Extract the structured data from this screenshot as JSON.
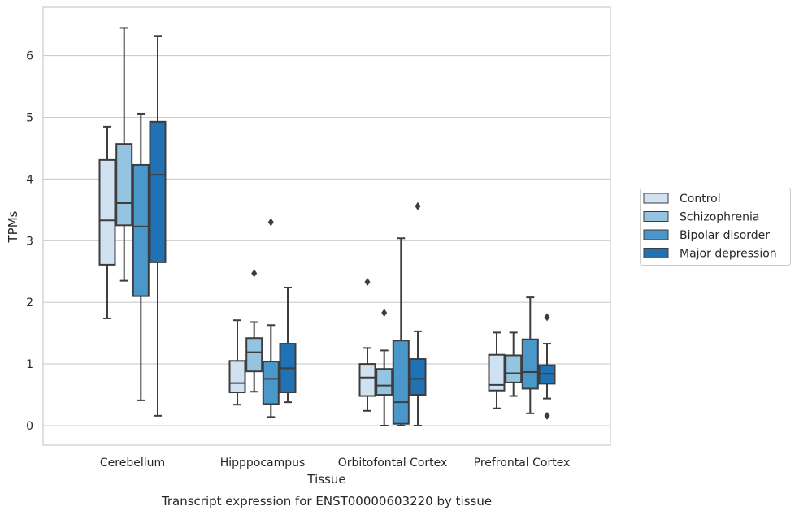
{
  "chart_data": {
    "type": "boxplot",
    "caption": "Transcript expression for ENST00000603220 by tissue",
    "xlabel": "Tissue",
    "ylabel": "TPMs",
    "ylim": [
      -0.3,
      6.8
    ],
    "yticks": [
      "0",
      "1",
      "2",
      "3",
      "4",
      "5",
      "6"
    ],
    "grid": true,
    "legend_position": "right",
    "categories": [
      "Cerebellum",
      "Hipppocampus",
      "Orbitofontal Cortex",
      "Prefrontal Cortex"
    ],
    "series": [
      {
        "name": "Control",
        "color": "#d0e1f2",
        "boxes": [
          {
            "whislo": 1.74,
            "q1": 2.61,
            "med": 3.33,
            "q3": 4.31,
            "whishi": 4.85,
            "fliers": []
          },
          {
            "whislo": 0.34,
            "q1": 0.54,
            "med": 0.69,
            "q3": 1.05,
            "whishi": 1.71,
            "fliers": []
          },
          {
            "whislo": 0.24,
            "q1": 0.48,
            "med": 0.78,
            "q3": 1.0,
            "whishi": 1.26,
            "fliers": [
              2.33
            ]
          },
          {
            "whislo": 0.28,
            "q1": 0.57,
            "med": 0.66,
            "q3": 1.15,
            "whishi": 1.51,
            "fliers": []
          }
        ]
      },
      {
        "name": "Schizophrenia",
        "color": "#94c4df",
        "boxes": [
          {
            "whislo": 2.35,
            "q1": 3.25,
            "med": 3.61,
            "q3": 4.57,
            "whishi": 6.45,
            "fliers": []
          },
          {
            "whislo": 0.55,
            "q1": 0.88,
            "med": 1.19,
            "q3": 1.42,
            "whishi": 1.68,
            "fliers": [
              2.47
            ]
          },
          {
            "whislo": 0.0,
            "q1": 0.5,
            "med": 0.65,
            "q3": 0.92,
            "whishi": 1.22,
            "fliers": [
              1.83
            ]
          },
          {
            "whislo": 0.48,
            "q1": 0.7,
            "med": 0.85,
            "q3": 1.14,
            "whishi": 1.51,
            "fliers": []
          }
        ]
      },
      {
        "name": "Bipolar disorder",
        "color": "#4a98c9",
        "boxes": [
          {
            "whislo": 0.41,
            "q1": 2.1,
            "med": 3.23,
            "q3": 4.23,
            "whishi": 5.06,
            "fliers": []
          },
          {
            "whislo": 0.14,
            "q1": 0.35,
            "med": 0.76,
            "q3": 1.04,
            "whishi": 1.63,
            "fliers": [
              3.3
            ]
          },
          {
            "whislo": 0.0,
            "q1": 0.03,
            "med": 0.38,
            "q3": 1.38,
            "whishi": 3.04,
            "fliers": []
          },
          {
            "whislo": 0.2,
            "q1": 0.6,
            "med": 0.87,
            "q3": 1.4,
            "whishi": 2.08,
            "fliers": []
          }
        ]
      },
      {
        "name": "Major depression",
        "color": "#2171b5",
        "boxes": [
          {
            "whislo": 0.16,
            "q1": 2.65,
            "med": 4.07,
            "q3": 4.93,
            "whishi": 6.32,
            "fliers": []
          },
          {
            "whislo": 0.38,
            "q1": 0.54,
            "med": 0.93,
            "q3": 1.33,
            "whishi": 2.24,
            "fliers": []
          },
          {
            "whislo": 0.0,
            "q1": 0.5,
            "med": 0.76,
            "q3": 1.08,
            "whishi": 1.53,
            "fliers": [
              3.56
            ]
          },
          {
            "whislo": 0.44,
            "q1": 0.68,
            "med": 0.84,
            "q3": 0.98,
            "whishi": 1.33,
            "fliers": [
              1.76,
              0.16
            ]
          }
        ]
      }
    ]
  }
}
